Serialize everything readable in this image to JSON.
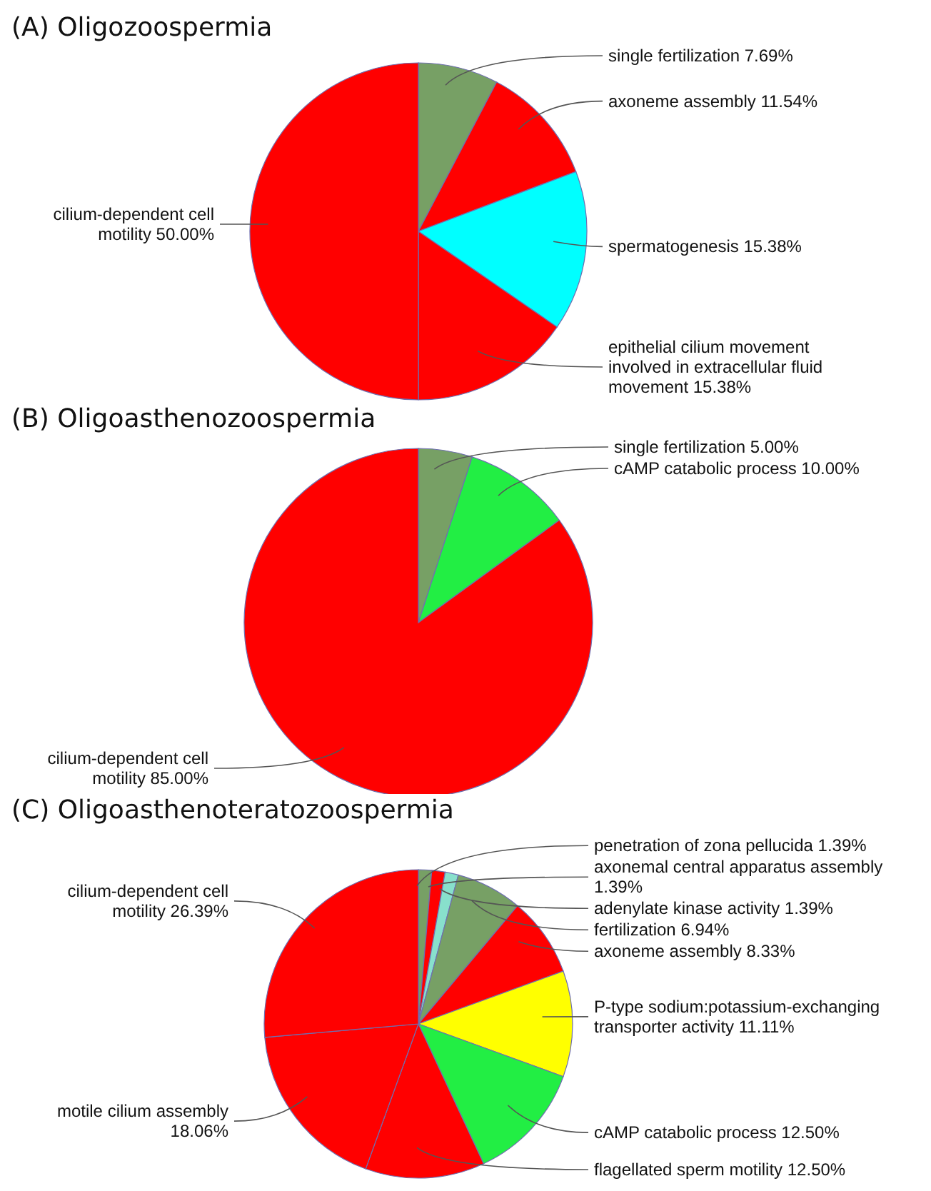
{
  "chart_data": [
    {
      "type": "pie",
      "title": "(A) Oligozoospermia",
      "categories": [
        "single fertilization",
        "axoneme assembly",
        "spermatogenesis",
        "epithelial cilium movement involved in extracellular fluid movement",
        "cilium-dependent cell motility"
      ],
      "values": [
        7.69,
        11.54,
        15.38,
        15.38,
        50.0
      ],
      "value_labels": [
        "7.69%",
        "11.54%",
        "15.38%",
        "15.38%",
        "50.00%"
      ],
      "colors": [
        "#77a065",
        "#ff0000",
        "#00ffff",
        "#ff0000",
        "#ff0000"
      ],
      "legend": false
    },
    {
      "type": "pie",
      "title": "(B) Oligoasthenozoospermia",
      "categories": [
        "single fertilization",
        "cAMP catabolic process",
        "cilium-dependent cell motility"
      ],
      "values": [
        5.0,
        10.0,
        85.0
      ],
      "value_labels": [
        "5.00%",
        "10.00%",
        "85.00%"
      ],
      "colors": [
        "#77a065",
        "#22ee44",
        "#ff0000"
      ],
      "legend": false
    },
    {
      "type": "pie",
      "title": "(C) Oligoasthenoteratozoospermia",
      "categories": [
        "penetration of zona pellucida",
        "axonemal central apparatus assembly",
        "adenylate kinase activity",
        "fertilization",
        "axoneme assembly",
        "P-type sodium:potassium-exchanging transporter activity",
        "cAMP catabolic process",
        "flagellated sperm motility",
        "motile cilium assembly",
        "cilium-dependent cell motility"
      ],
      "values": [
        1.39,
        1.39,
        1.39,
        6.94,
        8.33,
        11.11,
        12.5,
        12.5,
        18.06,
        26.39
      ],
      "value_labels": [
        "1.39%",
        "1.39%",
        "1.39%",
        "6.94%",
        "8.33%",
        "11.11%",
        "12.50%",
        "12.50%",
        "18.06%",
        "26.39%"
      ],
      "colors": [
        "#77a065",
        "#ff0000",
        "#88e0cc",
        "#77a065",
        "#ff0000",
        "#ffff00",
        "#22ee44",
        "#ff0000",
        "#ff0000",
        "#ff0000"
      ],
      "legend": false
    }
  ]
}
